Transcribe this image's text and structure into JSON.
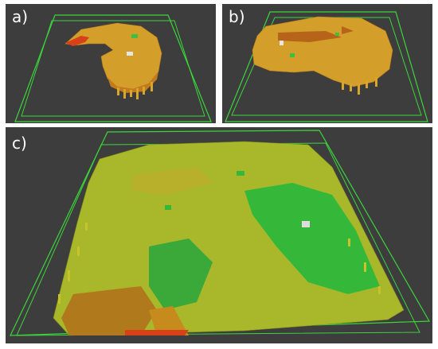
{
  "panels": [
    {
      "id": "a",
      "label": "a)"
    },
    {
      "id": "b",
      "label": "b)"
    },
    {
      "id": "c",
      "label": "c)"
    }
  ],
  "colors": {
    "background": "#3d3d3d",
    "frame": "#3bd63b",
    "occupied_low": "#c97a1a",
    "occupied_mid": "#d8a62a",
    "surface_yellow": "#c9c32a",
    "surface_green": "#3fbf3f",
    "high_red": "#d8401a"
  }
}
